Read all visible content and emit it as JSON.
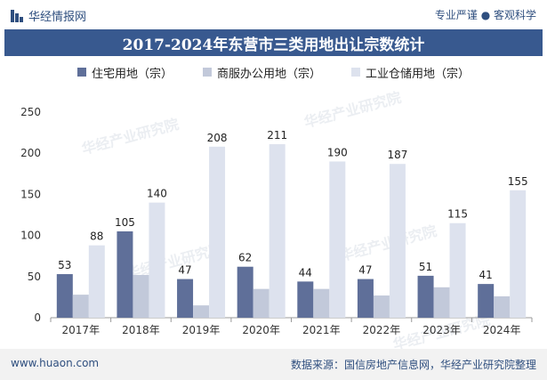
{
  "header": {
    "brand": "华经情报网",
    "slogan": "专业严谨 ● 客观科学"
  },
  "footer": {
    "site": "www.huaon.com",
    "source": "数据来源：国信房地产信息网，华经产业研究院整理"
  },
  "colors": {
    "series1": "#5f6f99",
    "series2": "#c2c9da",
    "series3": "#dde2ee",
    "title_bar": "#38598f",
    "brand": "#2f4f7f"
  },
  "chart_data": {
    "type": "bar",
    "title": "2017-2024年东营市三类用地出让宗数统计",
    "categories": [
      "2017年",
      "2018年",
      "2019年",
      "2020年",
      "2021年",
      "2022年",
      "2023年",
      "2024年"
    ],
    "series": [
      {
        "name": "住宅用地（宗）",
        "values": [
          53,
          105,
          47,
          62,
          44,
          47,
          51,
          41
        ],
        "labeled": true
      },
      {
        "name": "商服办公用地（宗）",
        "values": [
          28,
          52,
          15,
          35,
          35,
          27,
          37,
          26
        ],
        "labeled": false
      },
      {
        "name": "工业仓储用地（宗）",
        "values": [
          88,
          140,
          208,
          211,
          190,
          187,
          115,
          155
        ],
        "labeled": true
      }
    ],
    "ylim": [
      0,
      250
    ],
    "yticks": [
      0,
      50,
      100,
      150,
      200,
      250
    ],
    "legend_position": "top-center",
    "grid": false
  }
}
